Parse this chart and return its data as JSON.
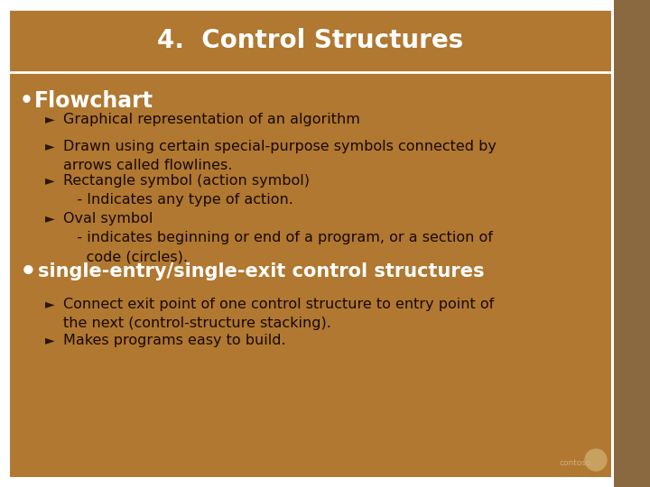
{
  "title": "4.  Control Structures",
  "title_bg": "#b07830",
  "outer_bg": "#8a6840",
  "content_bg": "#b07830",
  "white_bg": "#ffffff",
  "title_color": "#ffffff",
  "bullet1_text": "Flowchart",
  "bullet1_color": "#ffffff",
  "bullet2_text": "single-entry/single-exit control structures",
  "bullet2_color": "#ffffff",
  "sub_items_1": [
    "Graphical representation of an algorithm",
    "Drawn using certain special-purpose symbols connected by\narrows called flowlines.",
    "Rectangle symbol (action symbol)\n   - Indicates any type of action.",
    "Oval symbol\n   - indicates beginning or end of a program, or a section of\n     code (circles)."
  ],
  "sub_items_2": [
    "Connect exit point of one control structure to entry point of\nthe next (control-structure stacking).",
    "Makes programs easy to build."
  ],
  "text_color": "#1a0800",
  "arrow_color": "#2a1500",
  "font_size_title": 20,
  "font_size_bullet1": 15,
  "font_size_sub": 11.5,
  "font_size_bullet2": 15
}
